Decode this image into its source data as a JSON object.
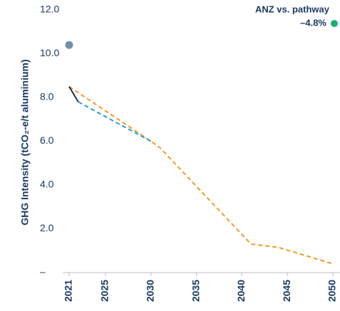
{
  "chart_data": {
    "type": "line",
    "ylabel": "GHG Intensity (tCO₂-e/t aluminium)",
    "annotation": {
      "title": "ANZ vs. pathway",
      "value": "–4.8%",
      "color": "#1bb26e"
    },
    "xlim": [
      2021,
      2050
    ],
    "xticks": [
      2021,
      2025,
      2030,
      2035,
      2040,
      2045,
      2050
    ],
    "ylim": [
      0,
      12
    ],
    "yticks": [
      {
        "value": 0,
        "label": "–"
      },
      {
        "value": 2,
        "label": "2.0"
      },
      {
        "value": 4,
        "label": "4.0"
      },
      {
        "value": 6,
        "label": "6.0"
      },
      {
        "value": 8,
        "label": "8.0"
      },
      {
        "value": 10,
        "label": "10.0"
      },
      {
        "value": 12,
        "label": "12.0"
      }
    ],
    "series": [
      {
        "color": "#f39a26",
        "dash": true,
        "x": [
          2021,
          2030,
          2031,
          2041,
          2044,
          2050
        ],
        "values": [
          8.5,
          6.0,
          5.7,
          1.3,
          1.15,
          0.4
        ]
      },
      {
        "color": "#2f9bd6",
        "dash": true,
        "x": [
          2022,
          2030
        ],
        "values": [
          7.8,
          6.0
        ]
      },
      {
        "color": "#1b2f57",
        "dash": false,
        "x": [
          2021,
          2022
        ],
        "values": [
          8.5,
          7.8
        ]
      },
      {
        "color": "#7191a8",
        "marker": true,
        "x": [
          2021
        ],
        "values": [
          10.4
        ]
      }
    ]
  }
}
